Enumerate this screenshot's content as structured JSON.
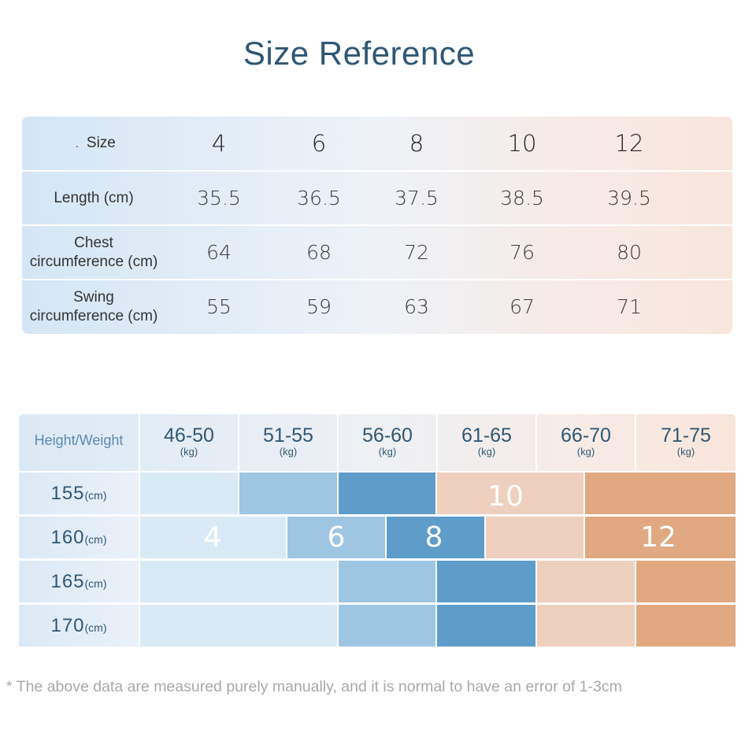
{
  "title": "Size Reference",
  "size_table": {
    "size_label_prefix": ".",
    "size_label": "Size",
    "sizes": [
      "4",
      "6",
      "8",
      "10",
      "12"
    ],
    "rows": [
      {
        "label_line1": "Length (cm)",
        "label_line2": "",
        "values": [
          "35.5",
          "36.5",
          "37.5",
          "38.5",
          "39.5"
        ]
      },
      {
        "label_line1": "Chest",
        "label_line2": "circumference (cm)",
        "values": [
          "64",
          "68",
          "72",
          "76",
          "80"
        ]
      },
      {
        "label_line1": "Swing",
        "label_line2": "circumference (cm)",
        "values": [
          "55",
          "59",
          "63",
          "67",
          "71"
        ]
      }
    ]
  },
  "fit_chart": {
    "corner_label": "Height/Weight",
    "weight_ranges": [
      {
        "range": "46-50",
        "unit": "(kg)"
      },
      {
        "range": "51-55",
        "unit": "(kg)"
      },
      {
        "range": "56-60",
        "unit": "(kg)"
      },
      {
        "range": "61-65",
        "unit": "(kg)"
      },
      {
        "range": "66-70",
        "unit": "(kg)"
      },
      {
        "range": "71-75",
        "unit": "(kg)"
      }
    ],
    "heights": [
      {
        "value": "155",
        "unit": "(cm)"
      },
      {
        "value": "160",
        "unit": "(cm)"
      },
      {
        "value": "165",
        "unit": "(cm)"
      },
      {
        "value": "170",
        "unit": "(cm)"
      }
    ],
    "size_labels": {
      "s4": "4",
      "s6": "6",
      "s8": "8",
      "s10": "10",
      "s12": "12"
    },
    "colors": {
      "s4": "#dae9f6",
      "s6": "#9ec6e3",
      "s8": "#5e9dc9",
      "s10": "#efcfbd",
      "s12": "#e0a982"
    }
  },
  "footnote": "* The above data are measured purely manually, and it is normal to have an error of 1-3cm"
}
